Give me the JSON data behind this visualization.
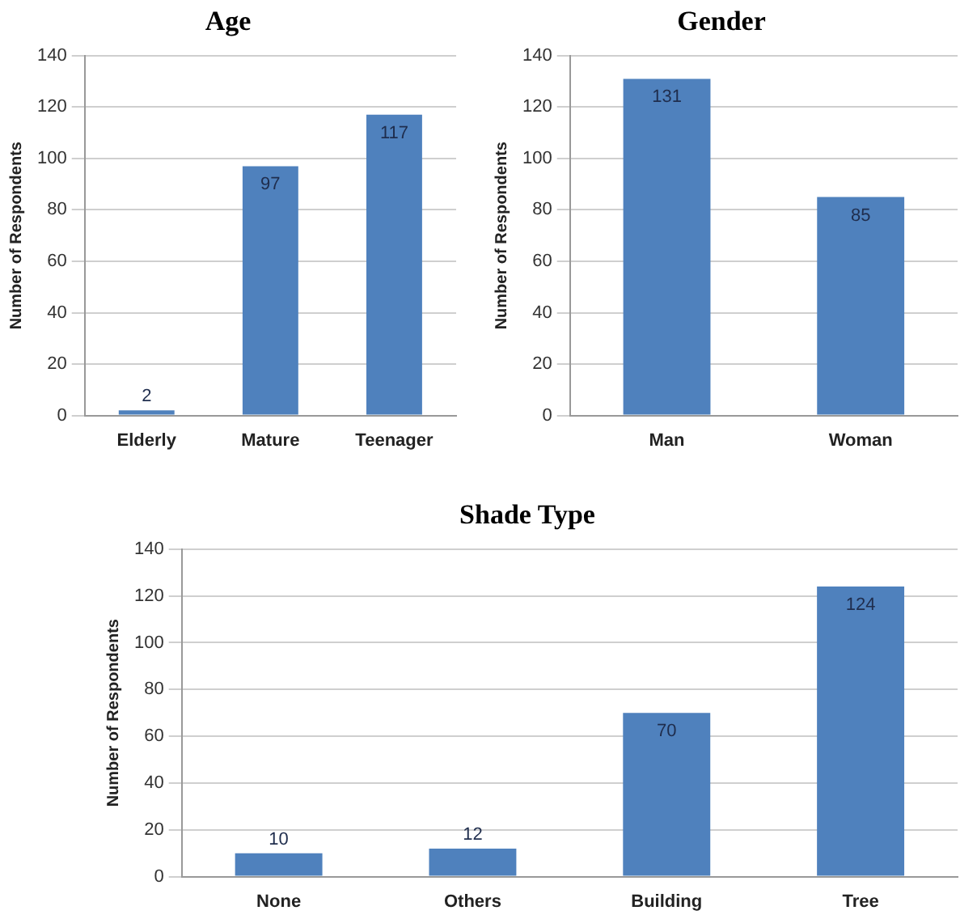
{
  "chart_data": [
    {
      "type": "bar",
      "title": "Age",
      "ylabel": "Number of Respondents",
      "categories": [
        "Elderly",
        "Mature",
        "Teenager"
      ],
      "values": [
        2,
        97,
        117
      ],
      "color": "#4f81bd",
      "ylim": [
        0,
        140
      ],
      "yticks": [
        0,
        20,
        40,
        60,
        80,
        100,
        120,
        140
      ],
      "grid": "y",
      "data_labels": true
    },
    {
      "type": "bar",
      "title": "Gender",
      "ylabel": "Number of Respondents",
      "categories": [
        "Man",
        "Woman"
      ],
      "values": [
        131,
        85
      ],
      "color": "#4f81bd",
      "ylim": [
        0,
        140
      ],
      "yticks": [
        0,
        20,
        40,
        60,
        80,
        100,
        120,
        140
      ],
      "grid": "y",
      "data_labels": true
    },
    {
      "type": "bar",
      "title": "Shade Type",
      "ylabel": "Number of Respondents",
      "categories": [
        "None",
        "Others",
        "Building",
        "Tree"
      ],
      "values": [
        10,
        12,
        70,
        124
      ],
      "color": "#4f81bd",
      "ylim": [
        0,
        140
      ],
      "yticks": [
        0,
        20,
        40,
        60,
        80,
        100,
        120,
        140
      ],
      "grid": "y",
      "data_labels": true
    }
  ]
}
